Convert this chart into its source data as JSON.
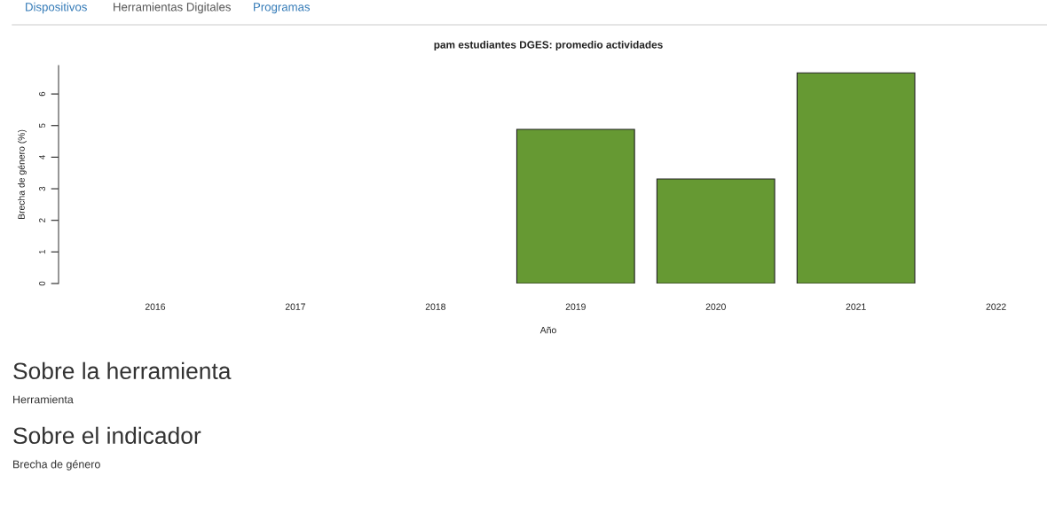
{
  "chart_data": {
    "type": "bar",
    "title": "pam estudiantes DGES: promedio actividades",
    "xlabel": "Año",
    "ylabel": "Brecha de género (%)",
    "categories": [
      "2016",
      "2017",
      "2018",
      "2019",
      "2020",
      "2021",
      "2022"
    ],
    "values": [
      null,
      null,
      null,
      4.88,
      3.31,
      6.67,
      null
    ],
    "color": "#669933",
    "ylim": [
      0,
      6.9
    ],
    "yticks": [
      0,
      1,
      2,
      3,
      4,
      5,
      6
    ],
    "grid": false,
    "legend": false,
    "annotations": [
      "Dispositivos",
      "Herramientas Digitales",
      "Programas",
      "Sobre la herramienta",
      "Herramienta",
      "Sobre el indicador",
      "Brecha de género"
    ]
  }
}
